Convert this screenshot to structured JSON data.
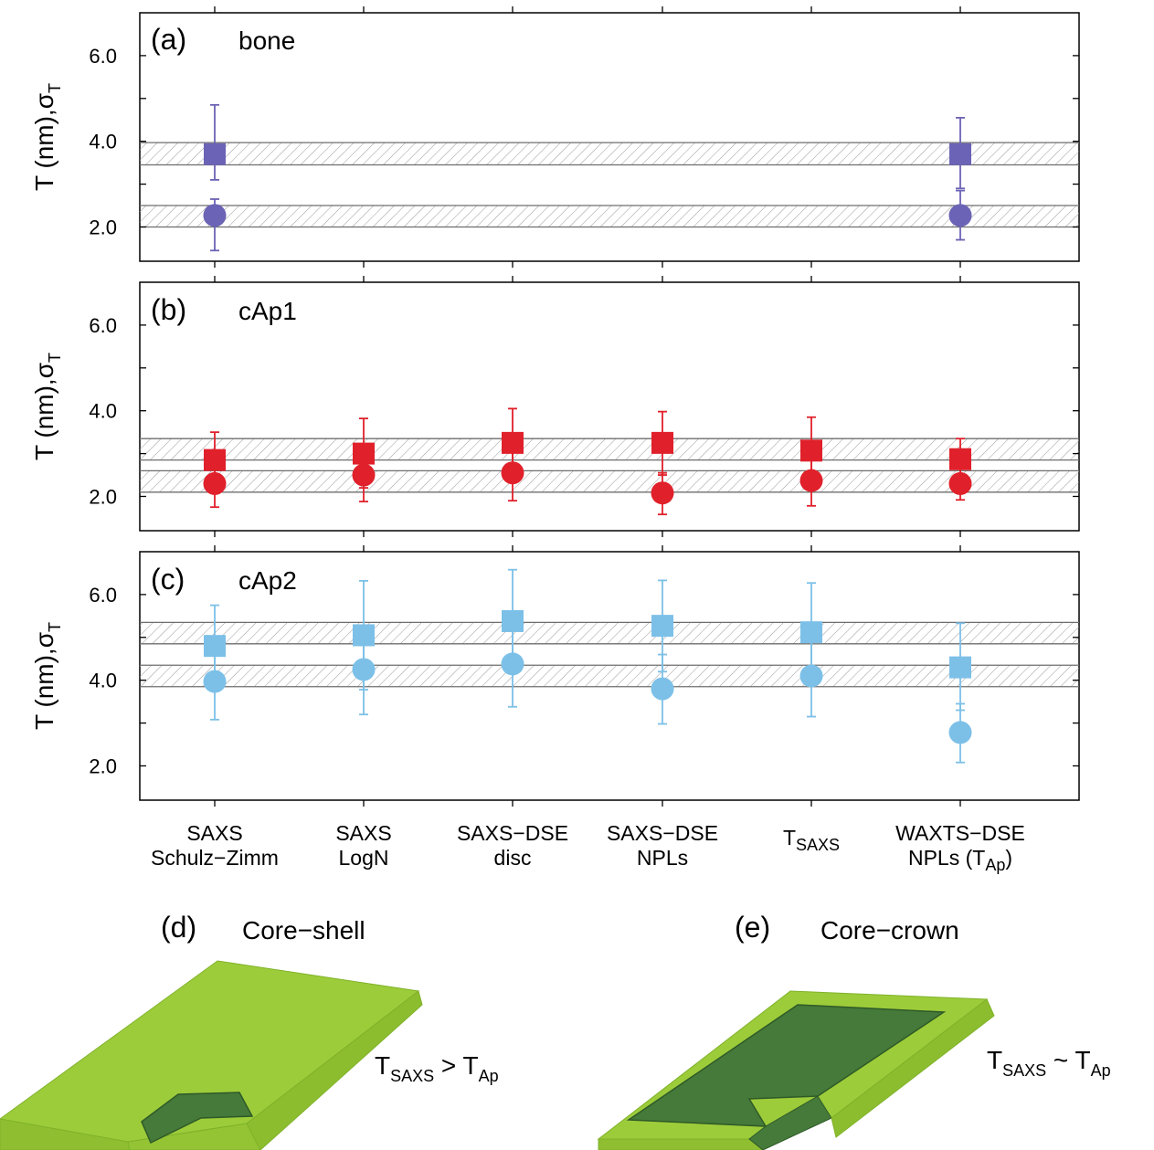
{
  "chart_data": {
    "type": "scatter",
    "categories": [
      {
        "line1": "SAXS",
        "line2": "Schulz−Zimm"
      },
      {
        "line1": "SAXS",
        "line2": "LogN"
      },
      {
        "line1": "SAXS−DSE",
        "line2": "disc"
      },
      {
        "line1": "SAXS−DSE",
        "line2": "NPLs"
      },
      {
        "line1": "T",
        "line1_sub": "SAXS",
        "line2": ""
      },
      {
        "line1": "WAXTS−DSE",
        "line2": "NPLs (T",
        "line2_sub": "Ap",
        "line2_suffix": ")"
      }
    ],
    "y_tick_labels": [
      "2.0",
      "4.0",
      "6.0"
    ],
    "ylim": [
      1.2,
      7.0
    ],
    "ylabel": {
      "main": "T (nm),σ",
      "sub": "T"
    },
    "panels": [
      {
        "tag": "(a)",
        "name": "bone",
        "color": "#6b63b5",
        "squares": [
          {
            "cat": 0,
            "y": 3.7,
            "err_lo": 3.1,
            "err_hi": 4.85
          },
          {
            "cat": 5,
            "y": 3.7,
            "err_lo": 2.9,
            "err_hi": 4.55
          }
        ],
        "circles": [
          {
            "cat": 0,
            "y": 2.27,
            "err_lo": 1.45,
            "err_hi": 2.65
          },
          {
            "cat": 5,
            "y": 2.27,
            "err_lo": 1.7,
            "err_hi": 2.85
          }
        ],
        "bands": [
          [
            3.45,
            3.97
          ],
          [
            2.0,
            2.5
          ]
        ]
      },
      {
        "tag": "(b)",
        "name": "cAp1",
        "color": "#e0202a",
        "squares": [
          {
            "cat": 0,
            "y": 2.85,
            "err_lo": 2.3,
            "err_hi": 3.5
          },
          {
            "cat": 1,
            "y": 3.0,
            "err_lo": 2.2,
            "err_hi": 3.82
          },
          {
            "cat": 2,
            "y": 3.25,
            "err_lo": 2.45,
            "err_hi": 4.05
          },
          {
            "cat": 3,
            "y": 3.25,
            "err_lo": 2.5,
            "err_hi": 3.98
          },
          {
            "cat": 4,
            "y": 3.07,
            "err_lo": 2.3,
            "err_hi": 3.85
          },
          {
            "cat": 5,
            "y": 2.87,
            "err_lo": 2.4,
            "err_hi": 3.35
          }
        ],
        "circles": [
          {
            "cat": 0,
            "y": 2.3,
            "err_lo": 1.75,
            "err_hi": 2.85
          },
          {
            "cat": 1,
            "y": 2.5,
            "err_lo": 1.88,
            "err_hi": 3.1
          },
          {
            "cat": 2,
            "y": 2.55,
            "err_lo": 1.9,
            "err_hi": 3.2
          },
          {
            "cat": 3,
            "y": 2.08,
            "err_lo": 1.58,
            "err_hi": 2.55
          },
          {
            "cat": 4,
            "y": 2.37,
            "err_lo": 1.78,
            "err_hi": 2.95
          },
          {
            "cat": 5,
            "y": 2.3,
            "err_lo": 1.92,
            "err_hi": 2.65
          }
        ],
        "bands": [
          [
            2.85,
            3.35
          ],
          [
            2.1,
            2.6
          ]
        ]
      },
      {
        "tag": "(c)",
        "name": "cAp2",
        "color": "#7cc0e8",
        "squares": [
          {
            "cat": 0,
            "y": 4.8,
            "err_lo": 3.85,
            "err_hi": 5.75
          },
          {
            "cat": 1,
            "y": 5.05,
            "err_lo": 3.78,
            "err_hi": 6.32
          },
          {
            "cat": 2,
            "y": 5.38,
            "err_lo": 4.15,
            "err_hi": 6.58
          },
          {
            "cat": 3,
            "y": 5.27,
            "err_lo": 4.2,
            "err_hi": 6.33
          },
          {
            "cat": 4,
            "y": 5.12,
            "err_lo": 3.95,
            "err_hi": 6.27
          },
          {
            "cat": 5,
            "y": 4.3,
            "err_lo": 3.3,
            "err_hi": 5.33
          }
        ],
        "circles": [
          {
            "cat": 0,
            "y": 3.97,
            "err_lo": 3.08,
            "err_hi": 4.9
          },
          {
            "cat": 1,
            "y": 4.25,
            "err_lo": 3.2,
            "err_hi": 5.25
          },
          {
            "cat": 2,
            "y": 4.38,
            "err_lo": 3.38,
            "err_hi": 5.35
          },
          {
            "cat": 3,
            "y": 3.8,
            "err_lo": 2.98,
            "err_hi": 4.6
          },
          {
            "cat": 4,
            "y": 4.1,
            "err_lo": 3.15,
            "err_hi": 5.05
          },
          {
            "cat": 5,
            "y": 2.78,
            "err_lo": 2.08,
            "err_hi": 3.45
          }
        ],
        "bands": [
          [
            4.85,
            5.35
          ],
          [
            3.85,
            4.35
          ]
        ]
      }
    ]
  },
  "illustrations": [
    {
      "tag": "(d)",
      "name": "Core−shell",
      "relation": {
        "left": "T",
        "left_sub": "SAXS",
        "op": " > ",
        "right": "T",
        "right_sub": "Ap"
      }
    },
    {
      "tag": "(e)",
      "name": "Core−crown",
      "relation": {
        "left": "T",
        "left_sub": "SAXS",
        "op": " ~ ",
        "right": "T",
        "right_sub": "Ap"
      }
    }
  ],
  "colors": {
    "light_green": "#9dcc3a",
    "dark_green": "#457a3a",
    "band_line": "#6e6e6e"
  }
}
